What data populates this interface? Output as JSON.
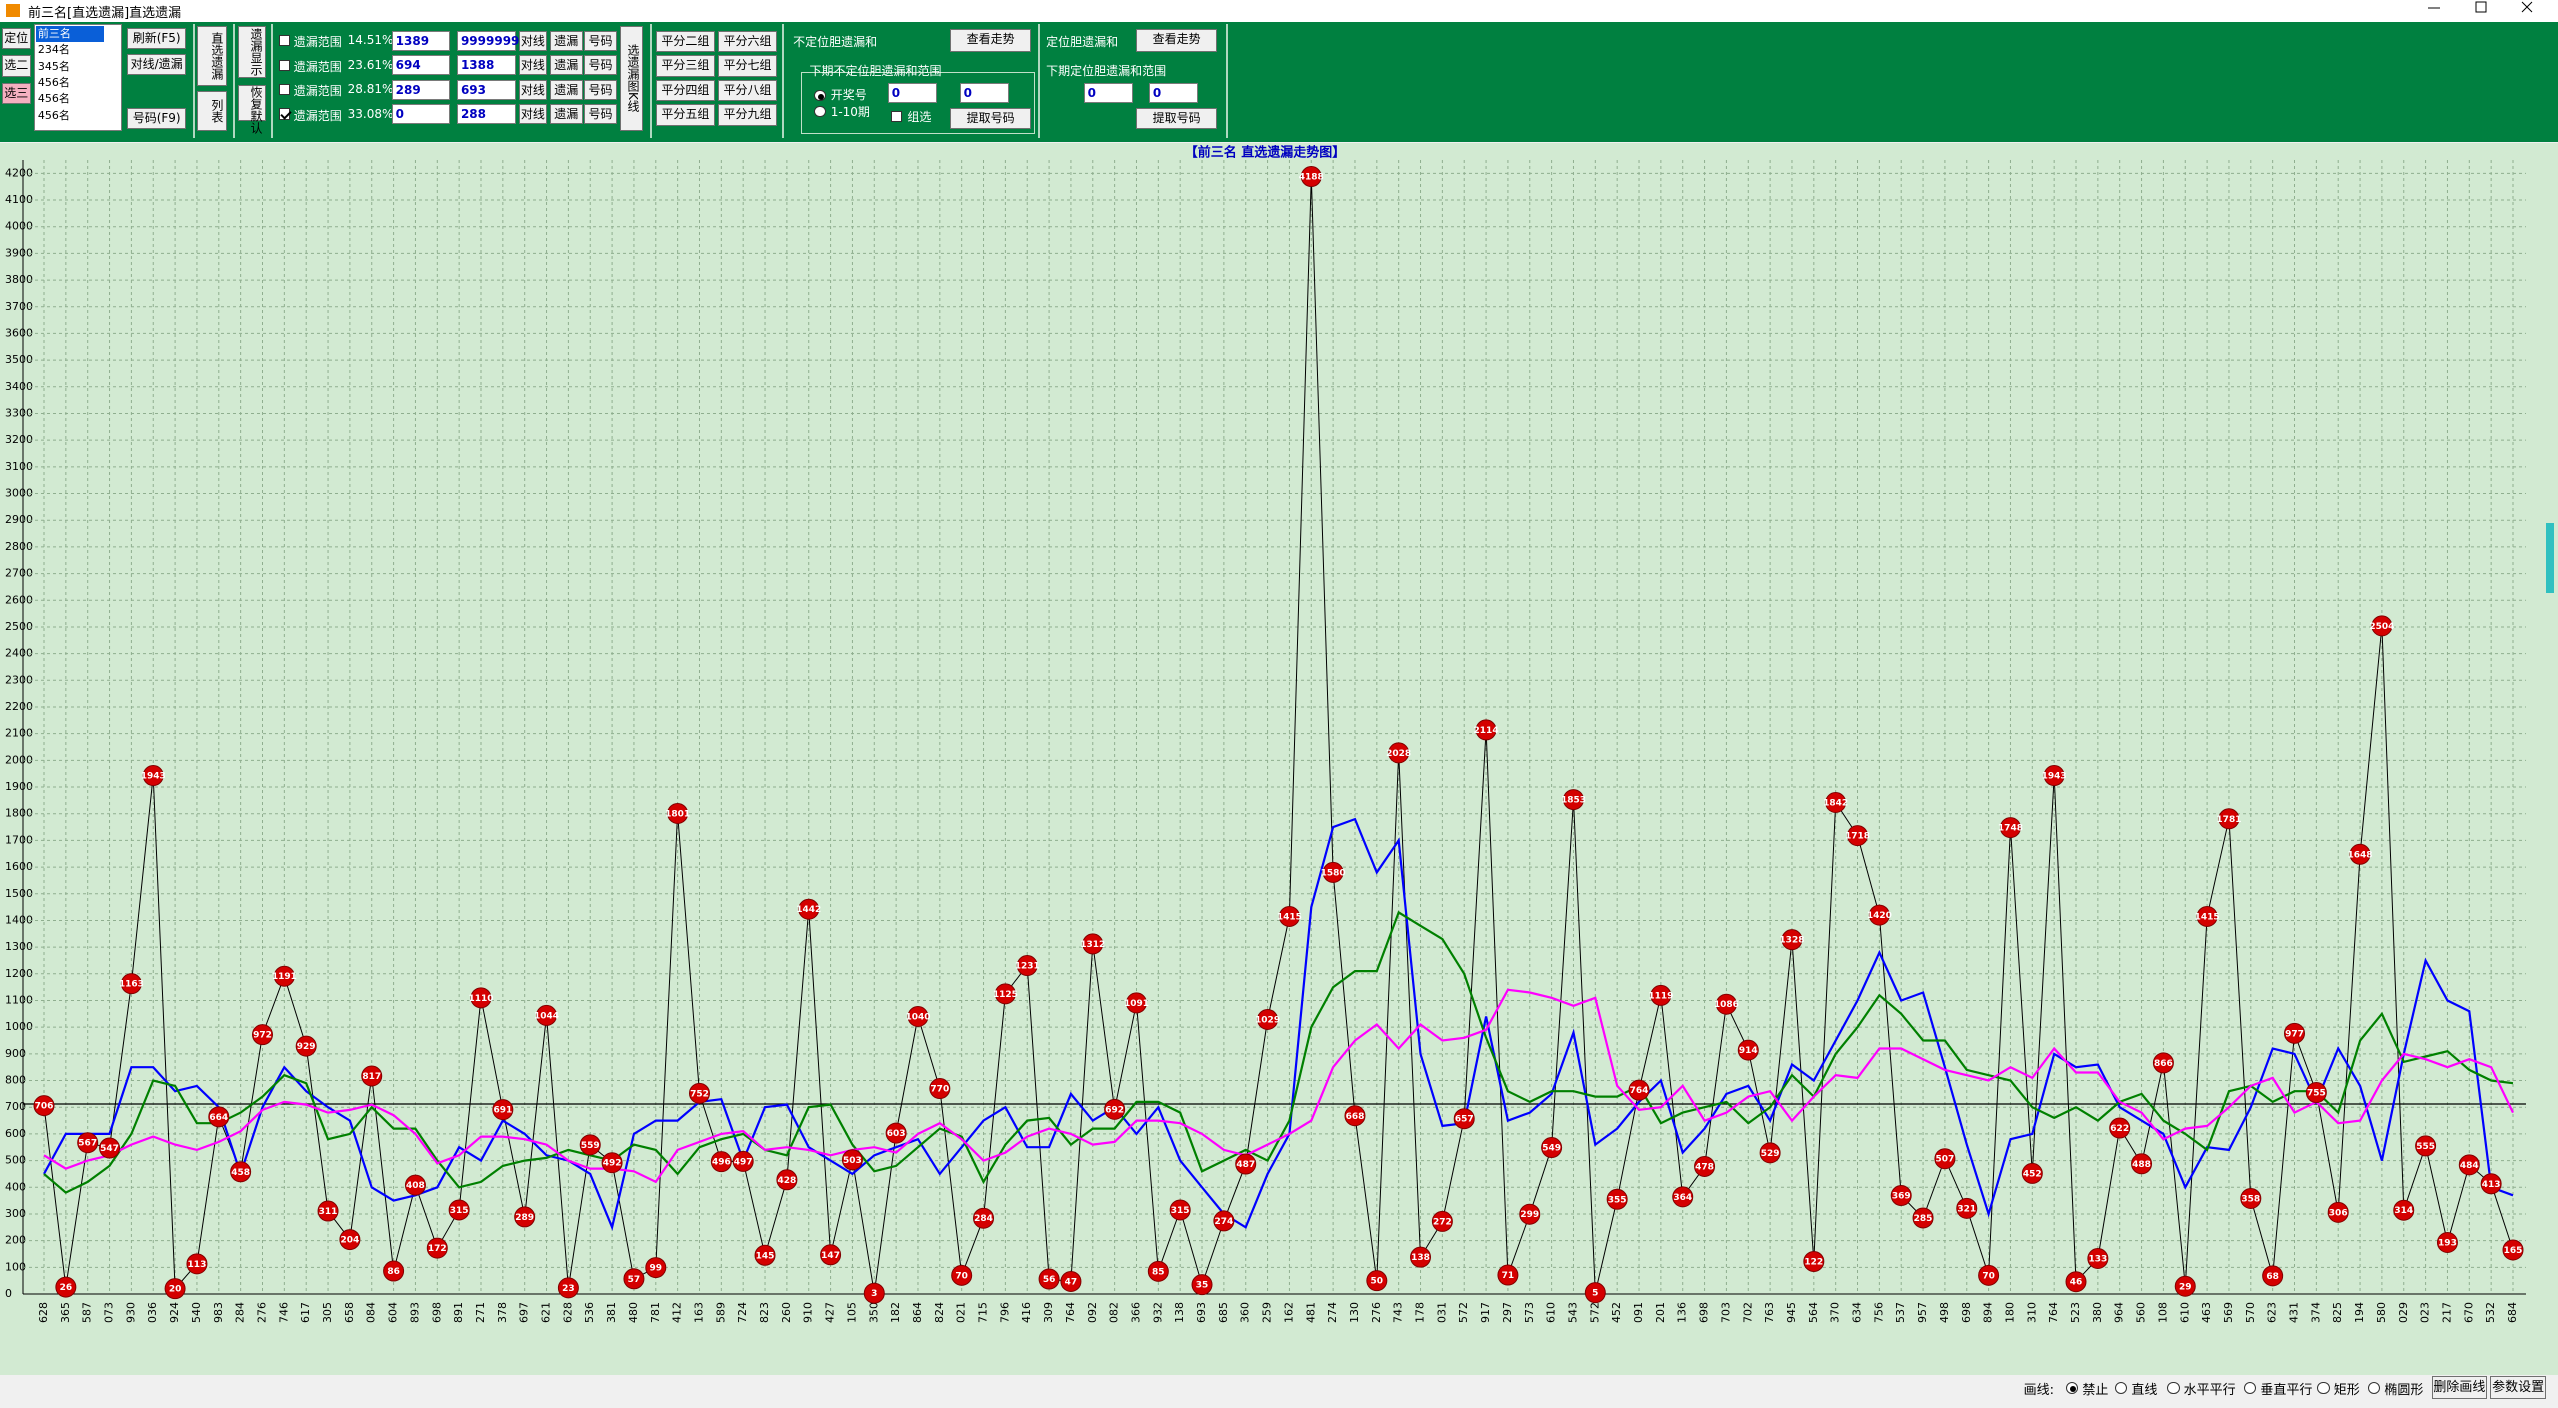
{
  "window": {
    "title": "前三名[直选遗漏]直选遗漏"
  },
  "toolbar": {
    "position_buttons": [
      "定位",
      "选二",
      "选三"
    ],
    "position_selected": 2,
    "rank_list": [
      "前三名",
      "234名",
      "345名",
      "456名",
      "456名",
      "456名"
    ],
    "rank_selected": 0,
    "refresh": "刷新(F5)",
    "line_omission": "对线/遗漏",
    "number": "号码(F9)",
    "direct_omission": "直选遗漏",
    "list": "列表",
    "omission_show": "遗漏显示",
    "restore_default": "恢复默认",
    "ranges": [
      {
        "label": "遗漏范围",
        "percent": "14.51%",
        "min": "1389",
        "max": "9999999",
        "checked": false
      },
      {
        "label": "遗漏范围",
        "percent": "23.61%",
        "min": "694",
        "max": "1388",
        "checked": false
      },
      {
        "label": "遗漏范围",
        "percent": "28.81%",
        "min": "289",
        "max": "693",
        "checked": false
      },
      {
        "label": "遗漏范围",
        "percent": "33.08%",
        "min": "0",
        "max": "288",
        "checked": true
      }
    ],
    "row_buttons": [
      "对线",
      "遗漏",
      "号码"
    ],
    "kline": "选遗漏图K线",
    "split_groups": [
      "平分二组",
      "平分三组",
      "平分四组",
      "平分五组",
      "平分六组",
      "平分七组",
      "平分八组",
      "平分九组"
    ],
    "unpositioned": {
      "title": "不定位胆遗漏和",
      "view": "查看走势",
      "next_range": "下期不定位胆遗漏和范围",
      "draw_number": "开奖号",
      "periods": "1-10期",
      "min": "0",
      "max": "0",
      "group": "组选",
      "extract": "提取号码"
    },
    "positioned": {
      "title": "定位胆遗漏和",
      "view": "查看走势",
      "next_range": "下期定位胆遗漏和范围",
      "min": "0",
      "max": "0",
      "extract": "提取号码"
    }
  },
  "chart_data": {
    "type": "line",
    "title": "【前三名 直选遗漏走势图】",
    "categories": [
      "628",
      "365",
      "587",
      "073",
      "930",
      "036",
      "924",
      "540",
      "983",
      "284",
      "276",
      "746",
      "617",
      "305",
      "658",
      "084",
      "604",
      "893",
      "698",
      "891",
      "271",
      "378",
      "697",
      "621",
      "628",
      "536",
      "381",
      "480",
      "781",
      "412",
      "163",
      "589",
      "724",
      "823",
      "260",
      "910",
      "427",
      "105",
      "350",
      "182",
      "864",
      "824",
      "021",
      "715",
      "796",
      "416",
      "309",
      "764",
      "092",
      "082",
      "366",
      "932",
      "138",
      "693",
      "685",
      "360",
      "259",
      "162",
      "481",
      "274",
      "130",
      "276",
      "743",
      "178",
      "031",
      "572",
      "917",
      "297",
      "573",
      "610",
      "543",
      "572",
      "452",
      "091",
      "201",
      "136",
      "698",
      "703",
      "702",
      "763",
      "945",
      "564",
      "370",
      "634",
      "756",
      "537",
      "957",
      "498",
      "698",
      "894",
      "180",
      "310",
      "764",
      "523",
      "380",
      "964",
      "560",
      "108",
      "610",
      "463",
      "569",
      "570",
      "623",
      "431",
      "374",
      "825",
      "194",
      "580",
      "029",
      "023",
      "217",
      "670",
      "532",
      "684"
    ],
    "series": [
      {
        "color": "#000000",
        "markers": true,
        "marker_color": "#d40000",
        "values": [
          706,
          26,
          567,
          547,
          1163,
          1943,
          20,
          113,
          664,
          458,
          972,
          1191,
          929,
          311,
          204,
          817,
          86,
          408,
          172,
          315,
          1110,
          691,
          289,
          1044,
          23,
          559,
          492,
          57,
          99,
          1801,
          752,
          496,
          497,
          145,
          428,
          1442,
          147,
          503,
          3,
          603,
          1040,
          770,
          70,
          284,
          1125,
          1231,
          56,
          47,
          1312,
          692,
          1091,
          85,
          315,
          35,
          274,
          487,
          1029,
          1415,
          4188,
          1580,
          668,
          50,
          2028,
          138,
          272,
          657,
          2114,
          71,
          299,
          549,
          1853,
          5,
          355,
          764,
          1119,
          364,
          478,
          1086,
          914,
          529,
          1328,
          122,
          1842,
          1718,
          1420,
          369,
          285,
          507,
          321,
          70,
          1748,
          452,
          1943,
          46,
          133,
          622,
          488,
          866,
          29,
          1415,
          1781,
          358,
          68,
          977,
          755,
          306,
          1648,
          2504,
          314,
          555,
          193,
          484,
          413,
          165
        ]
      },
      {
        "color": "#0000ff",
        "markers": false,
        "values": [
          450,
          600,
          600,
          600,
          850,
          850,
          760,
          780,
          700,
          450,
          700,
          850,
          760,
          700,
          650,
          400,
          350,
          370,
          400,
          550,
          500,
          650,
          600,
          520,
          500,
          450,
          250,
          600,
          650,
          650,
          720,
          730,
          500,
          700,
          710,
          550,
          500,
          450,
          520,
          550,
          580,
          450,
          550,
          650,
          700,
          550,
          550,
          750,
          650,
          700,
          600,
          700,
          500,
          400,
          300,
          250,
          450,
          600,
          1450,
          1750,
          1780,
          1580,
          1700,
          900,
          630,
          640,
          1040,
          650,
          680,
          750,
          980,
          560,
          620,
          720,
          800,
          530,
          620,
          750,
          780,
          650,
          860,
          800,
          950,
          1100,
          1280,
          1100,
          1130,
          850,
          560,
          300,
          580,
          600,
          900,
          850,
          860,
          700,
          650,
          600,
          400,
          550,
          540,
          700,
          920,
          900,
          720,
          920,
          780,
          500,
          900,
          1250,
          1100,
          1060,
          400,
          370
        ]
      },
      {
        "color": "#008000",
        "markers": false,
        "values": [
          450,
          380,
          420,
          480,
          600,
          800,
          780,
          640,
          640,
          680,
          740,
          820,
          790,
          580,
          600,
          700,
          620,
          620,
          500,
          400,
          420,
          480,
          500,
          510,
          540,
          520,
          500,
          560,
          540,
          450,
          550,
          580,
          600,
          540,
          520,
          700,
          710,
          560,
          460,
          480,
          550,
          620,
          590,
          420,
          560,
          650,
          660,
          560,
          620,
          620,
          720,
          720,
          680,
          460,
          500,
          540,
          500,
          650,
          1000,
          1150,
          1210,
          1210,
          1430,
          1380,
          1330,
          1200,
          960,
          760,
          720,
          760,
          760,
          740,
          740,
          780,
          640,
          680,
          700,
          720,
          640,
          700,
          820,
          740,
          900,
          1000,
          1120,
          1050,
          950,
          950,
          840,
          820,
          800,
          700,
          660,
          700,
          650,
          720,
          750,
          650,
          600,
          540,
          760,
          780,
          720,
          760,
          760,
          680,
          950,
          1050,
          870,
          890,
          910,
          840,
          800,
          790
        ]
      },
      {
        "color": "#ff00ff",
        "markers": false,
        "values": [
          520,
          470,
          500,
          520,
          560,
          590,
          560,
          540,
          570,
          610,
          690,
          720,
          710,
          680,
          690,
          710,
          670,
          600,
          490,
          520,
          590,
          590,
          580,
          560,
          500,
          470,
          470,
          460,
          420,
          540,
          570,
          600,
          610,
          540,
          550,
          540,
          520,
          540,
          550,
          530,
          600,
          640,
          580,
          500,
          530,
          590,
          620,
          600,
          560,
          570,
          650,
          650,
          640,
          600,
          540,
          520,
          560,
          600,
          650,
          850,
          950,
          1010,
          920,
          1010,
          950,
          960,
          990,
          1140,
          1130,
          1110,
          1080,
          1110,
          780,
          690,
          700,
          780,
          650,
          680,
          740,
          760,
          650,
          740,
          820,
          810,
          920,
          920,
          880,
          840,
          820,
          800,
          850,
          810,
          920,
          830,
          830,
          720,
          680,
          580,
          620,
          630,
          700,
          780,
          810,
          680,
          720,
          640,
          650,
          800,
          900,
          880,
          850,
          880,
          850,
          680
        ]
      }
    ],
    "hline": 712,
    "ylim": [
      0,
      4250
    ],
    "yticks": [
      0,
      100,
      200,
      300,
      400,
      500,
      600,
      700,
      800,
      900,
      1000,
      1100,
      1200,
      1300,
      1400,
      1500,
      1600,
      1700,
      1800,
      1900,
      2000,
      2100,
      2200,
      2300,
      2400,
      2500,
      2600,
      2700,
      2800,
      2900,
      3000,
      3100,
      3200,
      3300,
      3400,
      3500,
      3600,
      3700,
      3800,
      3900,
      4000,
      4100,
      4200
    ],
    "grid": true
  },
  "statusbar": {
    "draw_label": "画线:",
    "options": [
      "禁止",
      "直线",
      "水平平行",
      "垂直平行",
      "矩形",
      "椭圆形"
    ],
    "selected": 0,
    "buttons": [
      "删除画线",
      "参数设置"
    ]
  }
}
